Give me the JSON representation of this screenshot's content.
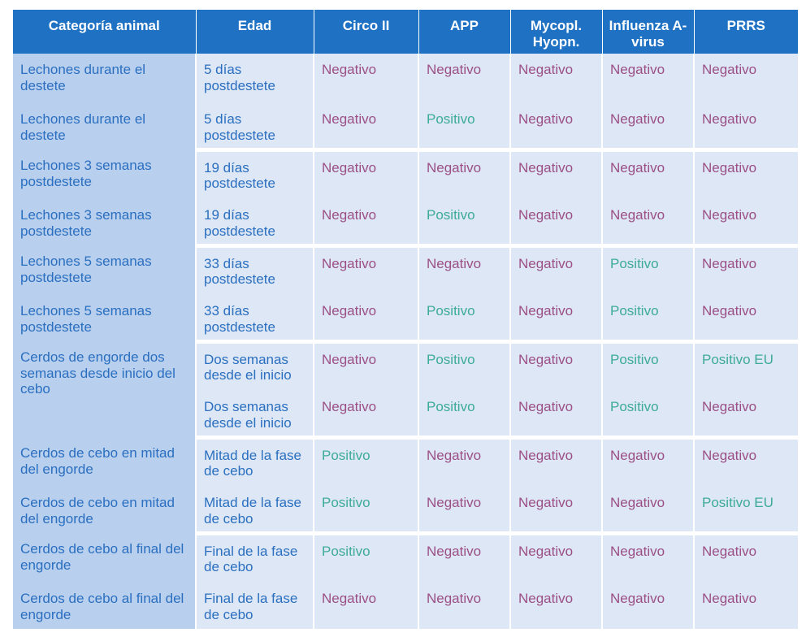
{
  "headers": [
    "Categoría animal",
    "Edad",
    "Circo II",
    "APP",
    "Mycopl. Hyopn.",
    "Influenza A-virus",
    "PRRS"
  ],
  "groups": [
    {
      "category": "Lechones durante el destete",
      "rows": [
        {
          "category": "Lechones durante el destete",
          "age": "5 días postdestete",
          "values": [
            "Negativo",
            "Negativo",
            "Negativo",
            "Negativo",
            "Negativo"
          ]
        },
        {
          "category": "Lechones durante el destete",
          "age": "5 días postdestete",
          "values": [
            "Negativo",
            "Positivo",
            "Negativo",
            "Negativo",
            "Negativo"
          ]
        }
      ]
    },
    {
      "category": "Lechones 3 semanas postdestete",
      "rows": [
        {
          "category": "Lechones 3 semanas postdestete",
          "age": "19 días postdestete",
          "values": [
            "Negativo",
            "Negativo",
            "Negativo",
            "Negativo",
            "Negativo"
          ]
        },
        {
          "category": "Lechones 3 semanas postdestete",
          "age": "19 días postdestete",
          "values": [
            "Negativo",
            "Positivo",
            "Negativo",
            "Negativo",
            "Negativo"
          ]
        }
      ]
    },
    {
      "category": "Lechones 5 semanas postdestete",
      "rows": [
        {
          "category": "Lechones 5 semanas postdestete",
          "age": "33 días postdestete",
          "values": [
            "Negativo",
            "Negativo",
            "Negativo",
            "Positivo",
            "Negativo"
          ]
        },
        {
          "category": "Lechones 5 semanas postdestete",
          "age": "33 días postdestete",
          "values": [
            "Negativo",
            "Positivo",
            "Negativo",
            "Positivo",
            "Negativo"
          ]
        }
      ]
    },
    {
      "category": "Cerdos de engorde dos semanas desde inicio del cebo",
      "rows": [
        {
          "category": "Cerdos de engorde dos semanas desde inicio del cebo",
          "age": "Dos semanas desde el inicio",
          "values": [
            "Negativo",
            "Positivo",
            "Negativo",
            "Positivo",
            "Positivo EU"
          ]
        },
        {
          "category": "",
          "age": "Dos semanas desde el inicio",
          "values": [
            "Negativo",
            "Positivo",
            "Negativo",
            "Positivo",
            "Negativo"
          ]
        }
      ]
    },
    {
      "category": "Cerdos de cebo en mitad del engorde",
      "rows": [
        {
          "category": "Cerdos de cebo en mitad del engorde",
          "age": "Mitad de la fase de cebo",
          "values": [
            "Positivo",
            "Negativo",
            "Negativo",
            "Negativo",
            "Negativo"
          ]
        },
        {
          "category": "Cerdos de cebo en mitad del engorde",
          "age": "Mitad de la fase de cebo",
          "values": [
            "Positivo",
            "Negativo",
            "Negativo",
            "Negativo",
            "Positivo EU"
          ]
        }
      ]
    },
    {
      "category": "Cerdos de cebo al final del engorde",
      "rows": [
        {
          "category": "Cerdos de cebo al final del engorde",
          "age": "Final de la fase de cebo",
          "values": [
            "Positivo",
            "Negativo",
            "Negativo",
            "Negativo",
            "Negativo"
          ]
        },
        {
          "category": "Cerdos de cebo al final del engorde",
          "age": "Final de la fase de cebo",
          "values": [
            "Negativo",
            "Negativo",
            "Negativo",
            "Negativo",
            "Negativo"
          ]
        }
      ]
    }
  ],
  "colors": {
    "header_bg": "#1f71c4",
    "negative": "#9b4f86",
    "positive": "#3dab98",
    "category_bg": "#b9cfee",
    "cell_bg": "#dde7f5"
  }
}
